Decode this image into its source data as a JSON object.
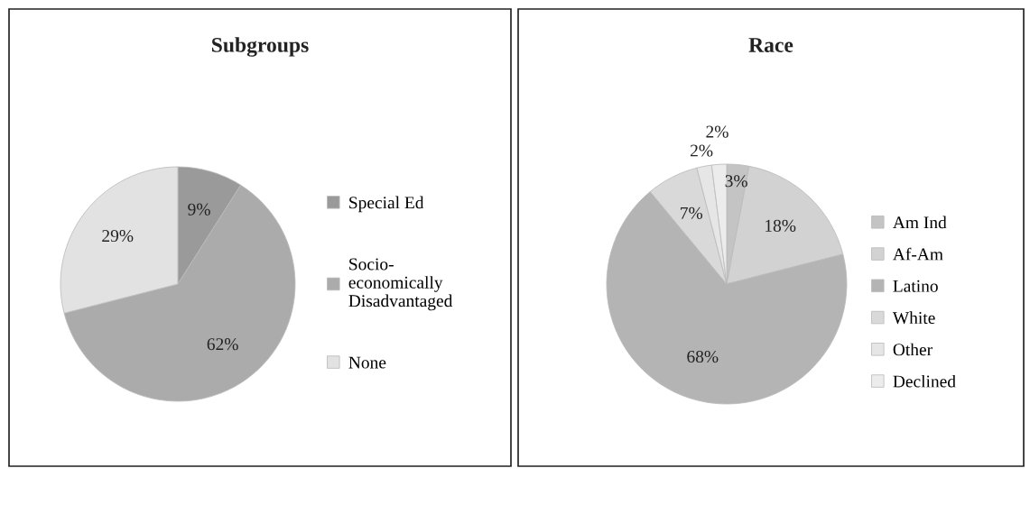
{
  "chart_data": [
    {
      "type": "pie",
      "title": "Subgroups",
      "categories": [
        "Special Ed",
        "Socio-economically Disadvantaged",
        "None"
      ],
      "values": [
        9,
        62,
        29
      ],
      "colors": [
        "#9a9a9a",
        "#ababab",
        "#e2e2e2"
      ],
      "value_labels": [
        "9%",
        "62%",
        "29%"
      ],
      "legend": "right"
    },
    {
      "type": "pie",
      "title": "Race",
      "categories": [
        "Am Ind",
        "Af-Am",
        "Latino",
        "White",
        "Other",
        "Declined"
      ],
      "values": [
        3,
        18,
        68,
        7,
        2,
        2
      ],
      "colors": [
        "#c4c4c4",
        "#d2d2d2",
        "#b4b4b4",
        "#d9d9d9",
        "#e6e6e6",
        "#ececec"
      ],
      "value_labels": [
        "3%",
        "18%",
        "68%",
        "7%",
        "2%",
        "2%"
      ],
      "legend": "right"
    }
  ]
}
